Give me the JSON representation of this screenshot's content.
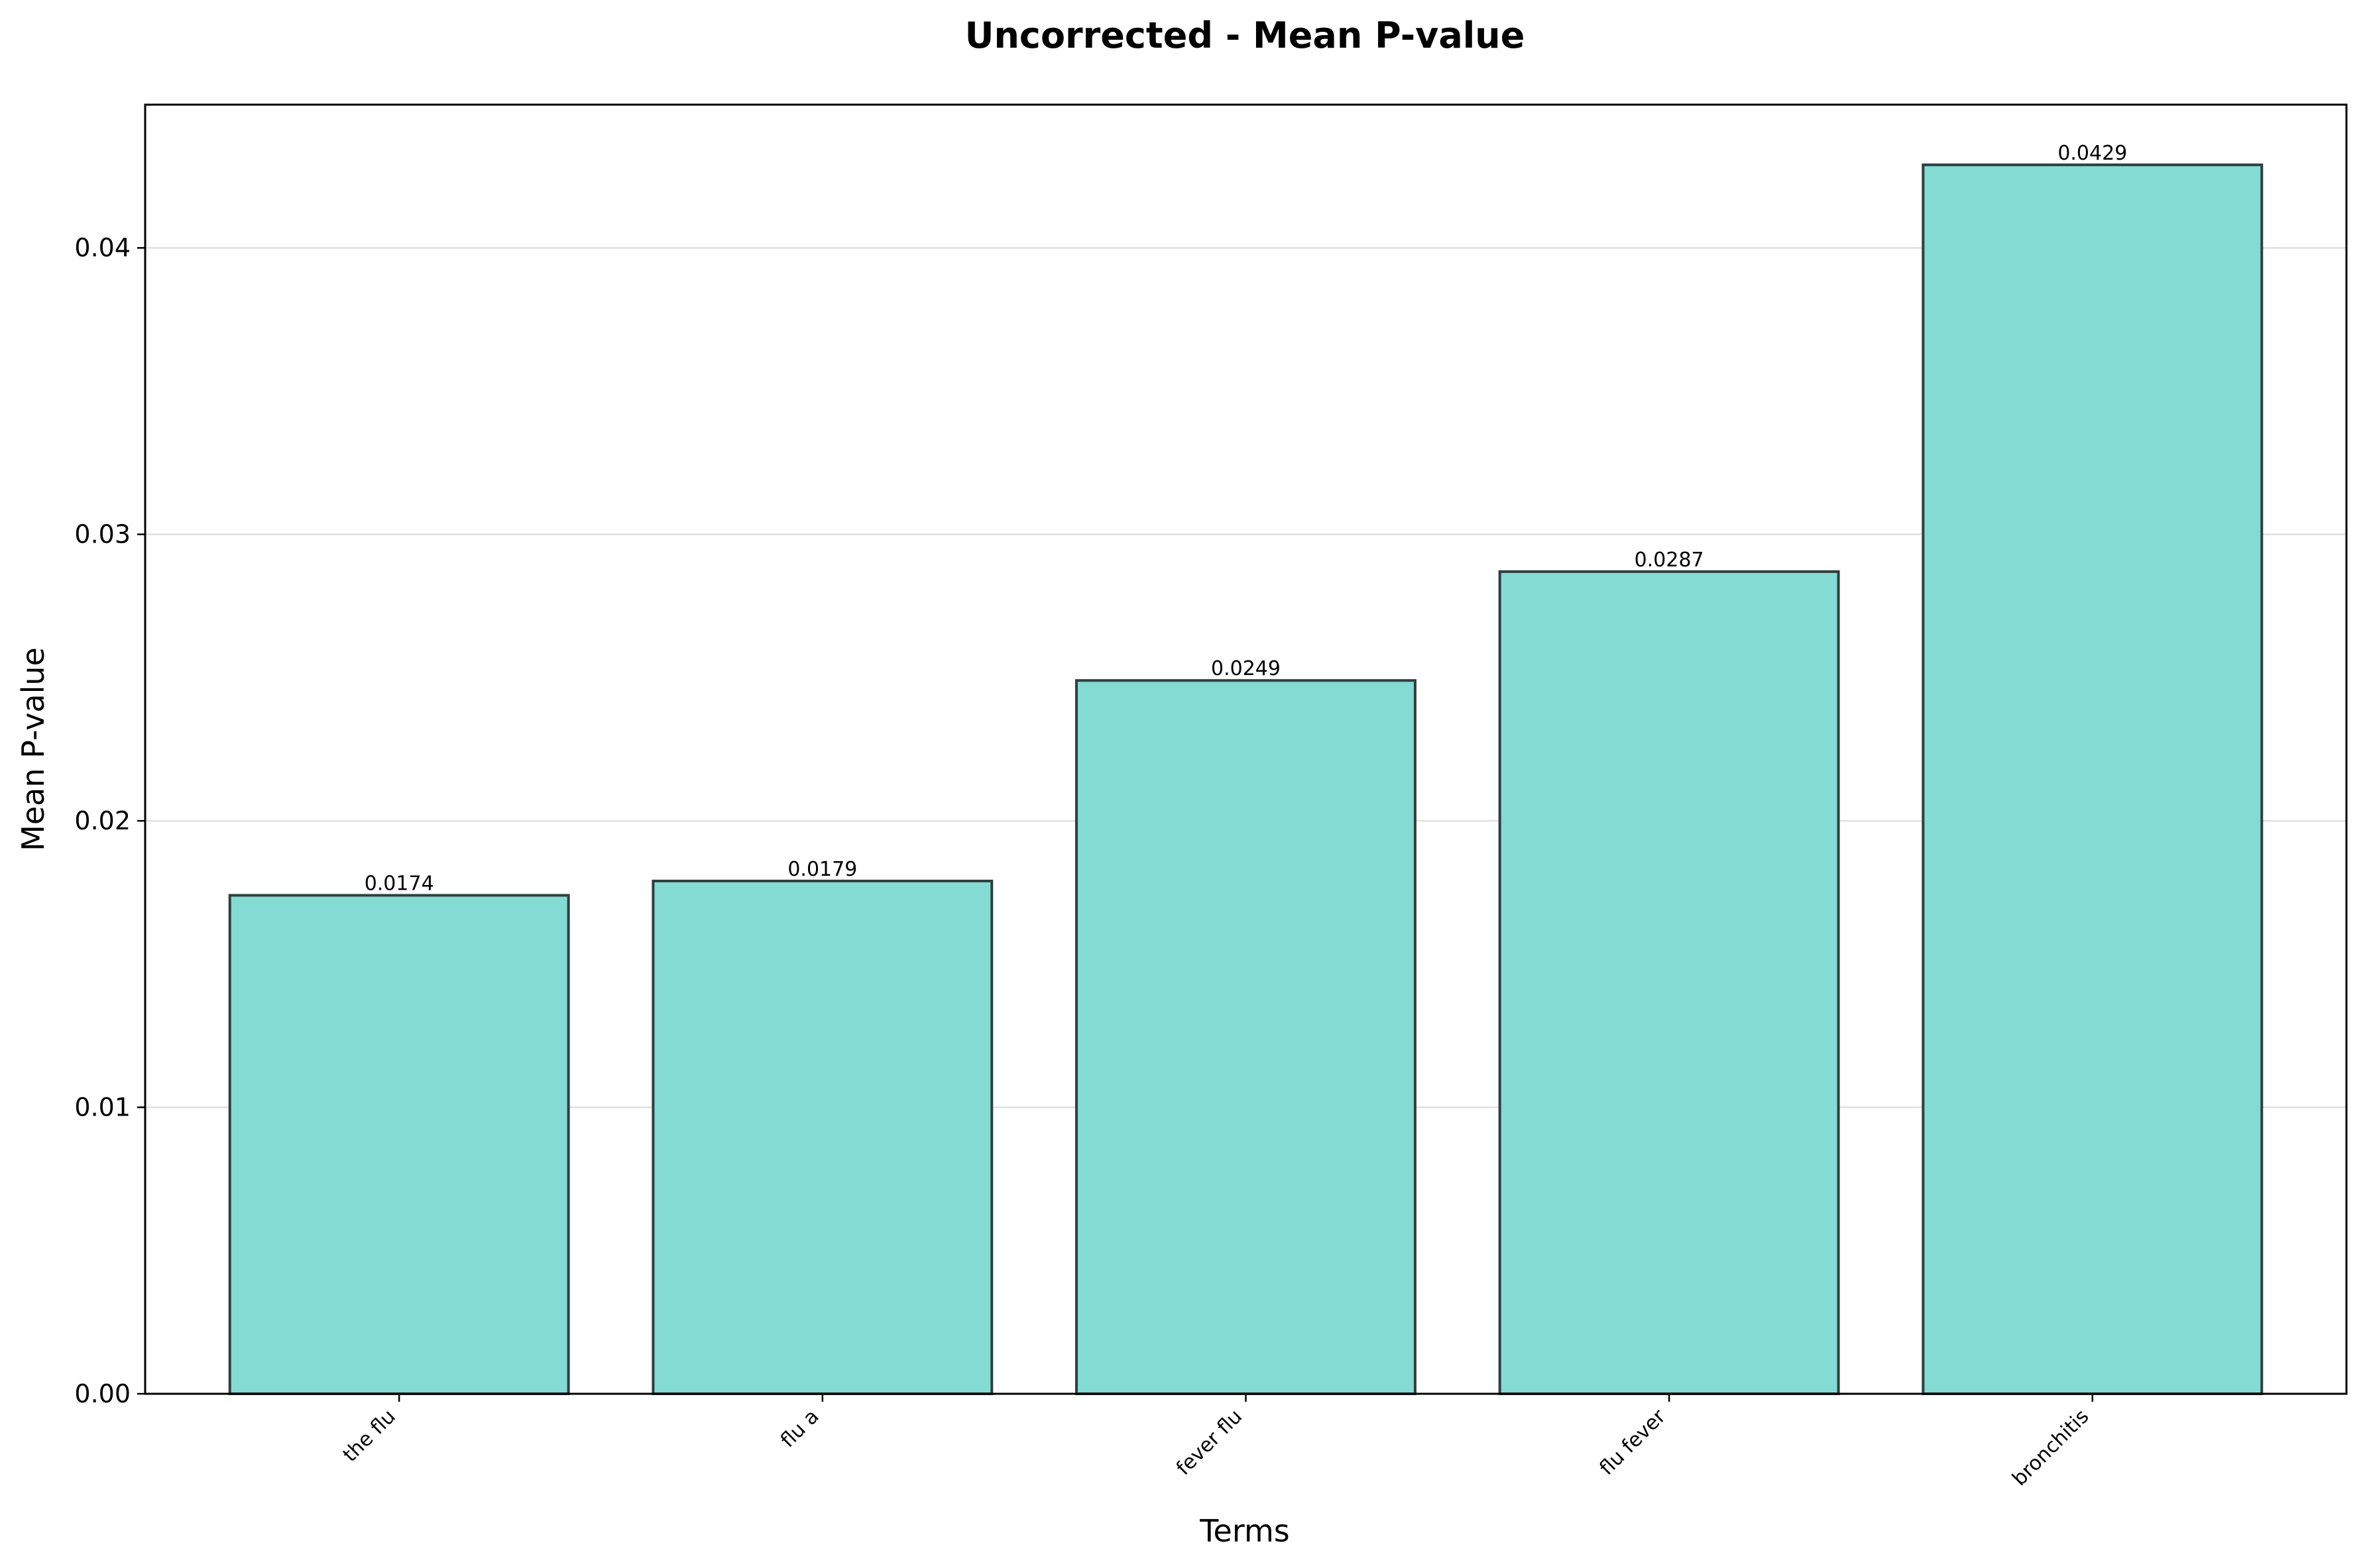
{
  "chart_data": {
    "type": "bar",
    "title": "Uncorrected - Mean P-value",
    "xlabel": "Terms",
    "ylabel": "Mean P-value",
    "categories": [
      "the flu",
      "flu a",
      "fever flu",
      "flu fever",
      "bronchitis"
    ],
    "values": [
      0.0174,
      0.0179,
      0.0249,
      0.0287,
      0.0429
    ],
    "data_labels": [
      "0.0174",
      "0.0179",
      "0.0249",
      "0.0287",
      "0.0429"
    ],
    "ylim": [
      0,
      0.045
    ],
    "yticks": [
      0.0,
      0.01,
      0.02,
      0.03,
      0.04
    ],
    "ytick_labels": [
      "0.00",
      "0.01",
      "0.02",
      "0.03",
      "0.04"
    ],
    "grid": "y-axis",
    "legend": "none",
    "colors": {
      "bar_fill": "#83dbd3",
      "bar_edge": "#2f3f3e",
      "grid": "#e0e0e0",
      "axis": "#000000"
    }
  }
}
